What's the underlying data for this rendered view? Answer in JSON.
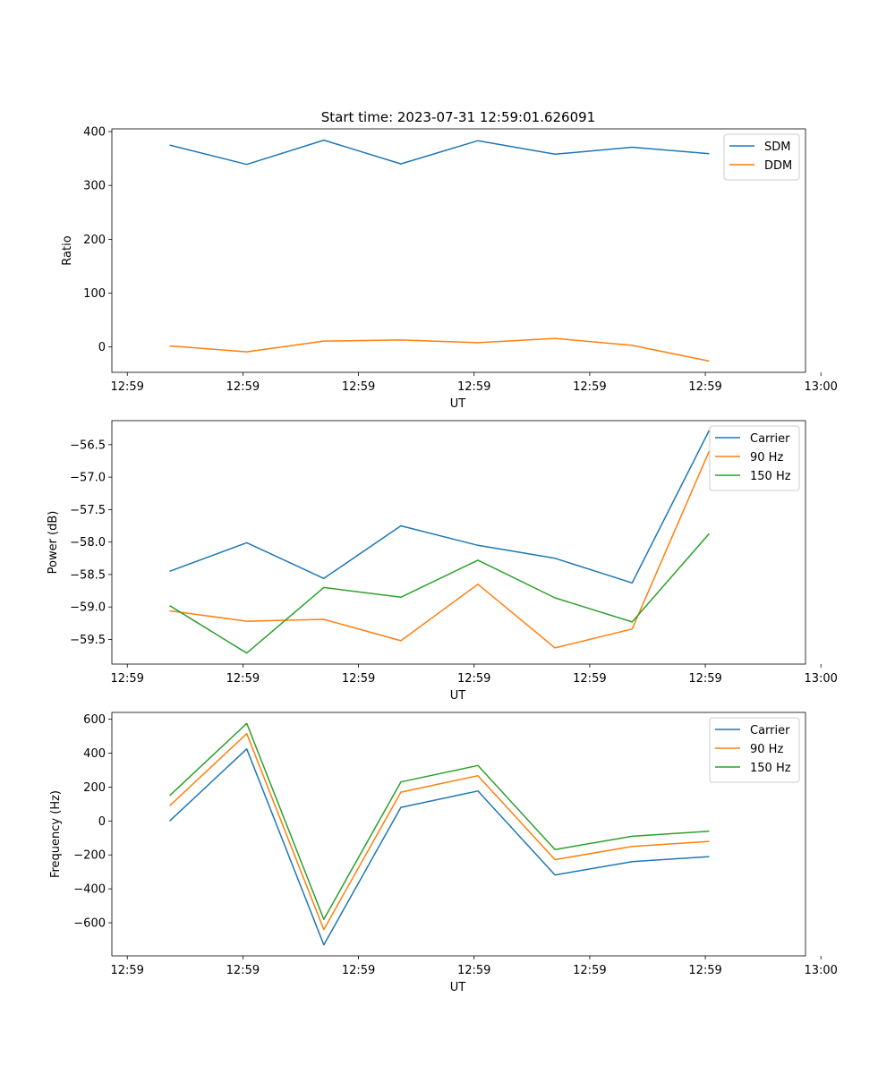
{
  "figure_title": "Start time: 2023-07-31 12:59:01.626091",
  "colors": {
    "c0": "#1f77b4",
    "c1": "#ff7f0e",
    "c2": "#2ca02c"
  },
  "chart_data": [
    {
      "type": "line",
      "title": "Start time: 2023-07-31 12:59:01.626091",
      "xlabel": "UT",
      "ylabel": "Ratio",
      "x": [
        1,
        2,
        3,
        4,
        5,
        6,
        7,
        8
      ],
      "xlim": [
        0.25,
        9.25
      ],
      "xticks": [
        0.45,
        1.95,
        3.45,
        4.95,
        6.45,
        7.95,
        9.45
      ],
      "xtick_labels": [
        "12:59",
        "12:59",
        "12:59",
        "12:59",
        "12:59",
        "12:59",
        "13:00"
      ],
      "ylim": [
        -47,
        405
      ],
      "yticks": [
        0,
        100,
        200,
        300,
        400
      ],
      "ytick_labels": [
        "0",
        "100",
        "200",
        "300",
        "400"
      ],
      "legend_position": "top-right",
      "series": [
        {
          "name": "SDM",
          "color": "#1f77b4",
          "values": [
            375,
            339,
            384,
            340,
            383,
            358,
            371,
            359
          ]
        },
        {
          "name": "DDM",
          "color": "#ff7f0e",
          "values": [
            2,
            -9,
            11,
            13,
            8,
            16,
            3,
            -26
          ]
        }
      ]
    },
    {
      "type": "line",
      "xlabel": "UT",
      "ylabel": "Power (dB)",
      "x": [
        1,
        2,
        3,
        4,
        5,
        6,
        7,
        8
      ],
      "xlim": [
        0.25,
        9.25
      ],
      "xticks": [
        0.45,
        1.95,
        3.45,
        4.95,
        6.45,
        7.95,
        9.45
      ],
      "xtick_labels": [
        "12:59",
        "12:59",
        "12:59",
        "12:59",
        "12:59",
        "12:59",
        "13:00"
      ],
      "ylim": [
        -59.88,
        -56.13
      ],
      "yticks": [
        -59.5,
        -59.0,
        -58.5,
        -58.0,
        -57.5,
        -57.0,
        -56.5
      ],
      "ytick_labels": [
        "−59.5",
        "−59.0",
        "−58.5",
        "−58.0",
        "−57.5",
        "−57.0",
        "−56.5"
      ],
      "legend_position": "top-right",
      "series": [
        {
          "name": "Carrier",
          "color": "#1f77b4",
          "values": [
            -58.45,
            -58.01,
            -58.56,
            -57.75,
            -58.05,
            -58.25,
            -58.63,
            -56.28
          ]
        },
        {
          "name": "90 Hz",
          "color": "#ff7f0e",
          "values": [
            -59.06,
            -59.22,
            -59.19,
            -59.52,
            -58.65,
            -59.63,
            -59.34,
            -56.6
          ]
        },
        {
          "name": "150 Hz",
          "color": "#2ca02c",
          "values": [
            -58.98,
            -59.71,
            -58.7,
            -58.85,
            -58.28,
            -58.86,
            -59.23,
            -57.87
          ]
        }
      ]
    },
    {
      "type": "line",
      "xlabel": "UT",
      "ylabel": "Frequency (Hz)",
      "x": [
        1,
        2,
        3,
        4,
        5,
        6,
        7,
        8
      ],
      "xlim": [
        0.25,
        9.25
      ],
      "xticks": [
        0.45,
        1.95,
        3.45,
        4.95,
        6.45,
        7.95,
        9.45
      ],
      "xtick_labels": [
        "12:59",
        "12:59",
        "12:59",
        "12:59",
        "12:59",
        "12:59",
        "13:00"
      ],
      "ylim": [
        -795,
        640
      ],
      "yticks": [
        -600,
        -400,
        -200,
        0,
        200,
        400,
        600
      ],
      "ytick_labels": [
        "−600",
        "−400",
        "−200",
        "0",
        "200",
        "400",
        "600"
      ],
      "legend_position": "top-right",
      "series": [
        {
          "name": "Carrier",
          "color": "#1f77b4",
          "values": [
            0,
            425,
            -730,
            80,
            177,
            -318,
            -240,
            -210
          ]
        },
        {
          "name": "90 Hz",
          "color": "#ff7f0e",
          "values": [
            90,
            515,
            -640,
            170,
            267,
            -228,
            -150,
            -120
          ]
        },
        {
          "name": "150 Hz",
          "color": "#2ca02c",
          "values": [
            150,
            575,
            -580,
            230,
            327,
            -168,
            -90,
            -60
          ]
        }
      ]
    }
  ]
}
